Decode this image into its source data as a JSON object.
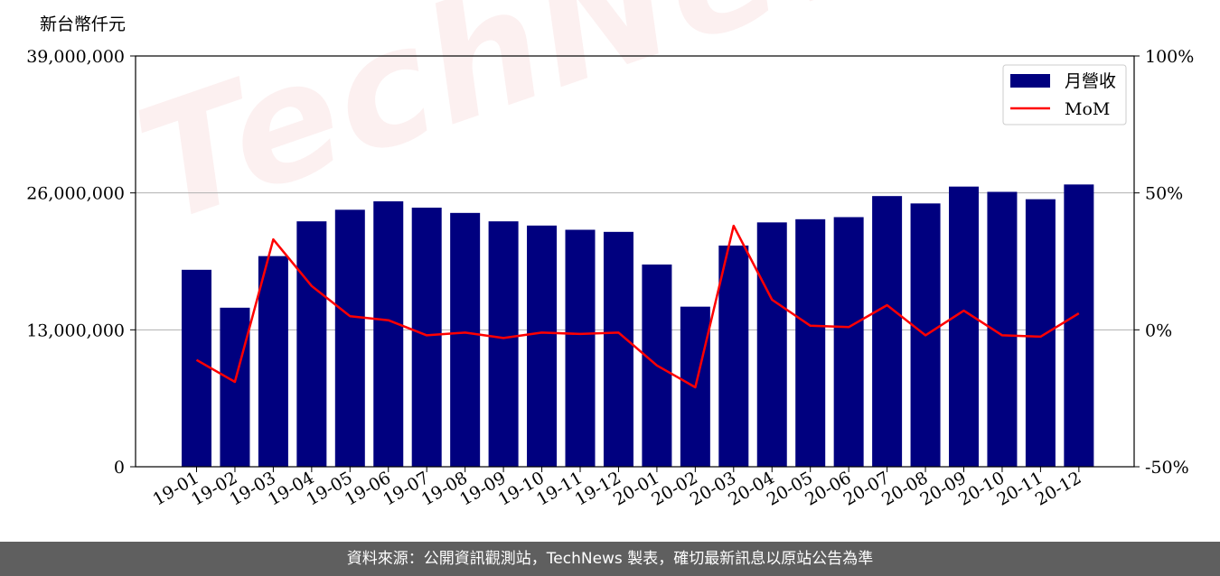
{
  "chart_data": {
    "type": "bar",
    "ylabel": "新台幣仟元",
    "categories": [
      "19-01",
      "19-02",
      "19-03",
      "19-04",
      "19-05",
      "19-06",
      "19-07",
      "19-08",
      "19-09",
      "19-10",
      "19-11",
      "19-12",
      "20-01",
      "20-02",
      "20-03",
      "20-04",
      "20-05",
      "20-06",
      "20-07",
      "20-08",
      "20-09",
      "20-10",
      "20-11",
      "20-12"
    ],
    "series": [
      {
        "name": "月營收",
        "axis": "left",
        "type": "bar",
        "color": "#00007f",
        "values": [
          18700000,
          15100000,
          20000000,
          23300000,
          24400000,
          25200000,
          24600000,
          24100000,
          23300000,
          22900000,
          22500000,
          22300000,
          19200000,
          15200000,
          21000000,
          23200000,
          23500000,
          23700000,
          25700000,
          25000000,
          26600000,
          26100000,
          25400000,
          26800000
        ]
      },
      {
        "name": "MoM",
        "axis": "right",
        "type": "line",
        "color": "#ff0000",
        "values": [
          -11,
          -19,
          33,
          16,
          5,
          3.5,
          -2,
          -1,
          -3,
          -1,
          -1.5,
          -1,
          -13,
          -21,
          38,
          11,
          1.5,
          1,
          9,
          -2,
          7,
          -2,
          -2.5,
          6
        ]
      }
    ],
    "left_axis": {
      "ylim": [
        0,
        39000000
      ],
      "ticks": [
        0,
        13000000,
        26000000,
        39000000
      ],
      "tick_labels": [
        "0",
        "13,000,000",
        "26,000,000",
        "39,000,000"
      ]
    },
    "right_axis": {
      "ylim": [
        -50,
        100
      ],
      "ticks": [
        -50,
        0,
        50,
        100
      ],
      "tick_labels": [
        "-50%",
        "0%",
        "50%",
        "100%"
      ]
    },
    "grid": "horizontal",
    "legend": "top-right"
  },
  "watermark": "TechNews",
  "footer": "資料來源：公開資訊觀測站，TechNews 製表，確切最新訊息以原站公告為準",
  "legend": {
    "bar_label": "月營收",
    "line_label": "MoM"
  }
}
